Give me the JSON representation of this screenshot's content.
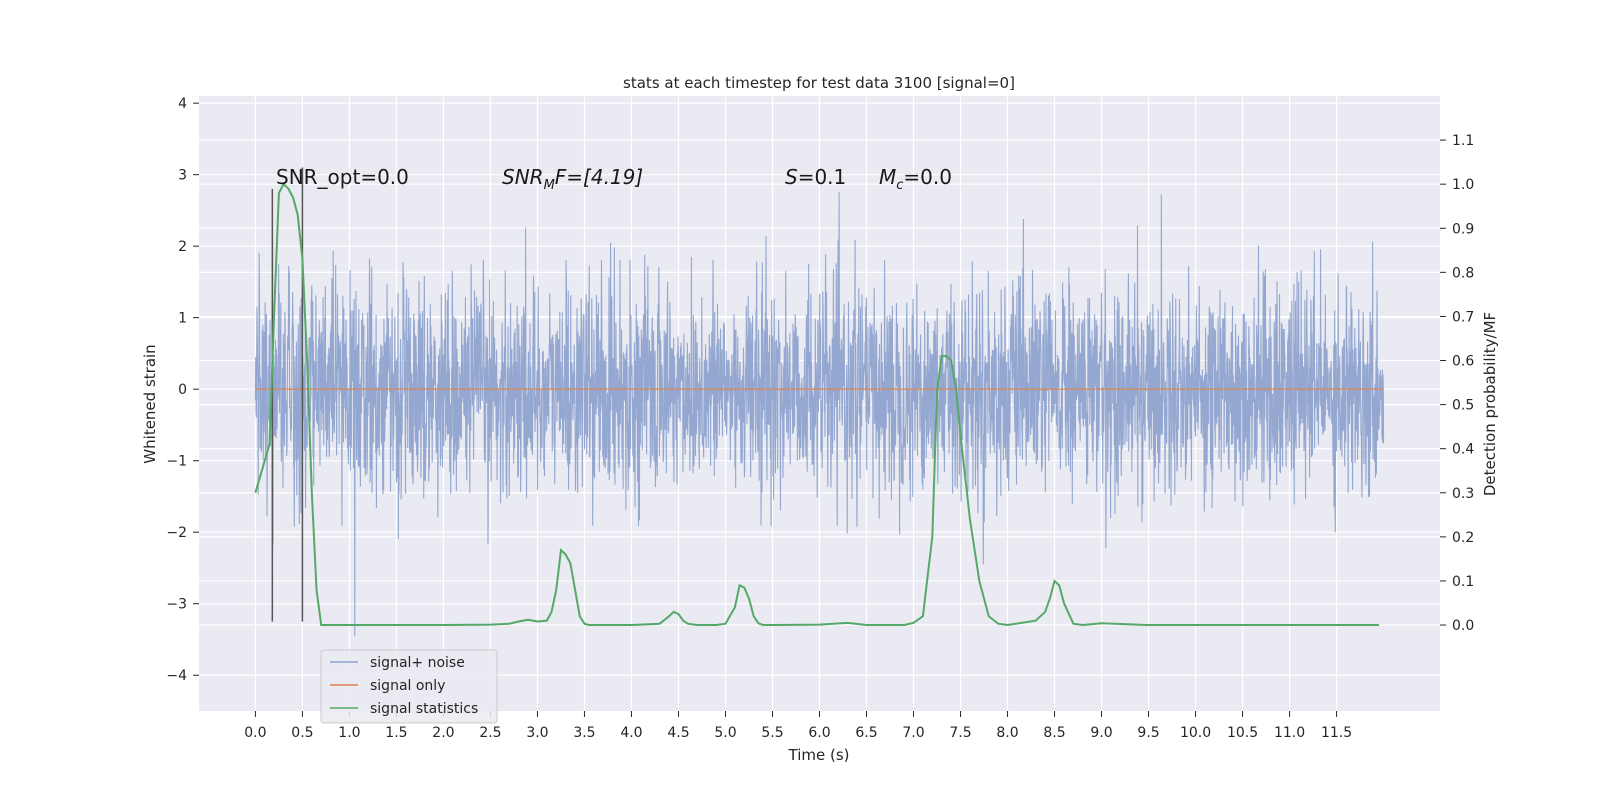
{
  "chart_data": {
    "type": "line",
    "title": "stats at each timestep for test data 3100 [signal=0]",
    "xlabel": "Time (s)",
    "ylabel": "Whitened strain",
    "y2label": "Detection probability/MF",
    "xlim": [
      -0.6,
      12.6
    ],
    "ylim": [
      -4.5,
      4.1
    ],
    "y2lim": [
      -0.195,
      1.2
    ],
    "x_ticks": [
      "0.0",
      "0.5",
      "1.0",
      "1.5",
      "2.0",
      "2.5",
      "3.0",
      "3.5",
      "4.0",
      "4.5",
      "5.0",
      "5.5",
      "6.0",
      "6.5",
      "7.0",
      "7.5",
      "8.0",
      "8.5",
      "9.0",
      "9.5",
      "10.0",
      "10.5",
      "11.0",
      "11.5"
    ],
    "y_ticks": [
      "−4",
      "−3",
      "−2",
      "−1",
      "0",
      "1",
      "2",
      "3",
      "4"
    ],
    "y2_ticks": [
      "0.0",
      "0.1",
      "0.2",
      "0.3",
      "0.4",
      "0.5",
      "0.6",
      "0.7",
      "0.8",
      "0.9",
      "1.0",
      "1.1"
    ],
    "grid": true,
    "legend_position": "lower-left",
    "colors": {
      "signal_noise": "#8ea3cd",
      "signal_only": "#dd8452",
      "statistics": "#55a868",
      "marker": "#555555"
    },
    "series": [
      {
        "name": "signal+ noise",
        "note_envelope": "noise band roughly ±1.6 with spikes to ±3.7",
        "x_range": [
          0.0,
          12.0
        ]
      },
      {
        "name": "signal only",
        "x": [
          0.0,
          12.0
        ],
        "y": [
          0.0,
          0.0
        ]
      },
      {
        "name": "signal statistics",
        "x": [
          0.0,
          0.15,
          0.2,
          0.25,
          0.3,
          0.35,
          0.4,
          0.45,
          0.5,
          0.55,
          0.6,
          0.65,
          0.7,
          0.75,
          0.8,
          1.0,
          1.5,
          2.0,
          2.5,
          2.7,
          2.8,
          2.9,
          3.0,
          3.1,
          3.15,
          3.2,
          3.25,
          3.3,
          3.35,
          3.4,
          3.45,
          3.5,
          3.55,
          3.6,
          3.7,
          4.0,
          4.3,
          4.4,
          4.45,
          4.5,
          4.55,
          4.6,
          4.7,
          4.9,
          5.0,
          5.1,
          5.15,
          5.2,
          5.25,
          5.3,
          5.35,
          5.4,
          5.5,
          6.0,
          6.3,
          6.5,
          6.9,
          7.0,
          7.1,
          7.2,
          7.25,
          7.3,
          7.35,
          7.4,
          7.45,
          7.5,
          7.6,
          7.7,
          7.8,
          7.9,
          8.0,
          8.3,
          8.4,
          8.45,
          8.5,
          8.55,
          8.6,
          8.7,
          8.8,
          9.0,
          9.5,
          10.0,
          10.5,
          11.0,
          11.5,
          11.95
        ],
        "y": [
          0.3,
          0.41,
          0.71,
          0.98,
          1.0,
          0.99,
          0.97,
          0.93,
          0.83,
          0.6,
          0.3,
          0.08,
          0.0,
          0.0,
          0.0,
          0.0,
          0.0,
          0.0,
          0.001,
          0.003,
          0.008,
          0.012,
          0.008,
          0.01,
          0.03,
          0.08,
          0.17,
          0.16,
          0.14,
          0.08,
          0.02,
          0.003,
          0.0,
          0.0,
          0.0,
          0.0,
          0.003,
          0.02,
          0.03,
          0.025,
          0.01,
          0.003,
          0.0,
          0.0,
          0.003,
          0.04,
          0.09,
          0.085,
          0.06,
          0.02,
          0.004,
          0.0,
          0.0,
          0.001,
          0.005,
          0.0,
          0.0,
          0.005,
          0.02,
          0.2,
          0.53,
          0.61,
          0.61,
          0.6,
          0.54,
          0.43,
          0.24,
          0.1,
          0.02,
          0.003,
          0.0,
          0.01,
          0.03,
          0.06,
          0.1,
          0.09,
          0.05,
          0.003,
          0.0,
          0.004,
          0.0,
          0.0,
          0.0,
          0.0,
          0.0,
          0.0
        ]
      }
    ],
    "markers": [
      {
        "x": 0.18,
        "y_from": -3.25,
        "y_to": 2.8
      },
      {
        "x": 0.5,
        "y_from": -3.25,
        "y_to": 3.1
      }
    ],
    "annotations": {
      "snr_opt": "SNR_opt=0.0",
      "snr_mf_prefix": "SNR",
      "snr_mf_sub": "M",
      "snr_mf_suffix": "F=[4.19]",
      "s_sym": "S",
      "s_val": "=0.1",
      "mc_sym": "M",
      "mc_sub": "c",
      "mc_val": "=0.0"
    },
    "legend": [
      {
        "label": "signal+ noise"
      },
      {
        "label": "signal only"
      },
      {
        "label": "signal statistics"
      }
    ]
  }
}
